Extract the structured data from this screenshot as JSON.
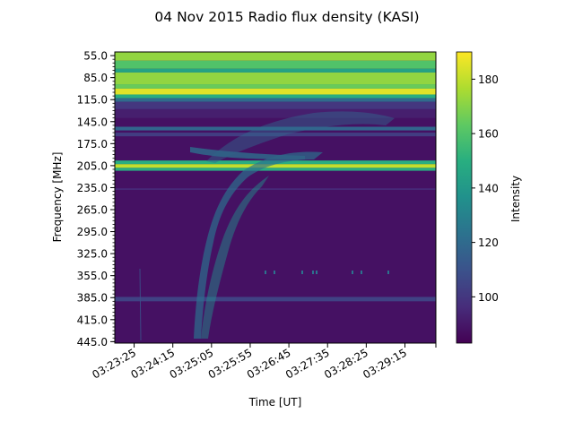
{
  "chart_data": {
    "type": "heatmap",
    "title": "04 Nov 2015 Radio flux density (KASI)",
    "xlabel": "Time [UT]",
    "ylabel": "Frequency [MHz]",
    "colorbar_label": "Intensity",
    "colormap": "viridis",
    "x_ticks": [
      "03:23:25",
      "03:24:15",
      "03:25:05",
      "03:25:55",
      "03:26:45",
      "03:27:35",
      "03:28:25",
      "03:29:15"
    ],
    "y_ticks": [
      "55.0",
      "85.0",
      "115.0",
      "145.0",
      "175.0",
      "205.0",
      "235.0",
      "265.0",
      "295.0",
      "325.0",
      "355.0",
      "385.0",
      "415.0",
      "445.0"
    ],
    "colorbar_ticks": [
      100,
      120,
      140,
      160,
      180
    ],
    "color_range": [
      83,
      190
    ],
    "y_range_mhz": [
      50,
      447
    ],
    "x_range": [
      "03:23:00",
      "03:29:55"
    ],
    "inverted_y": true,
    "background_intensity": 88,
    "bands": [
      {
        "freq": [
          50,
          62
        ],
        "intensity": 172
      },
      {
        "freq": [
          62,
          73
        ],
        "intensity": 160
      },
      {
        "freq": [
          73,
          78
        ],
        "intensity": 145
      },
      {
        "freq": [
          78,
          94
        ],
        "intensity": 172
      },
      {
        "freq": [
          94,
          100
        ],
        "intensity": 165
      },
      {
        "freq": [
          100,
          108
        ],
        "intensity": 185
      },
      {
        "freq": [
          108,
          113
        ],
        "intensity": 150
      },
      {
        "freq": [
          113,
          118
        ],
        "intensity": 120
      },
      {
        "freq": [
          118,
          128
        ],
        "intensity": 100
      },
      {
        "freq": [
          128,
          140
        ],
        "intensity": 92
      },
      {
        "freq": [
          152,
          157
        ],
        "intensity": 118
      },
      {
        "freq": [
          160,
          165
        ],
        "intensity": 102
      },
      {
        "freq": [
          198,
          203
        ],
        "intensity": 150
      },
      {
        "freq": [
          203,
          208
        ],
        "intensity": 180
      },
      {
        "freq": [
          208,
          212
        ],
        "intensity": 150
      },
      {
        "freq": [
          236,
          238
        ],
        "intensity": 96
      },
      {
        "freq": [
          384,
          390
        ],
        "intensity": 104
      }
    ]
  }
}
